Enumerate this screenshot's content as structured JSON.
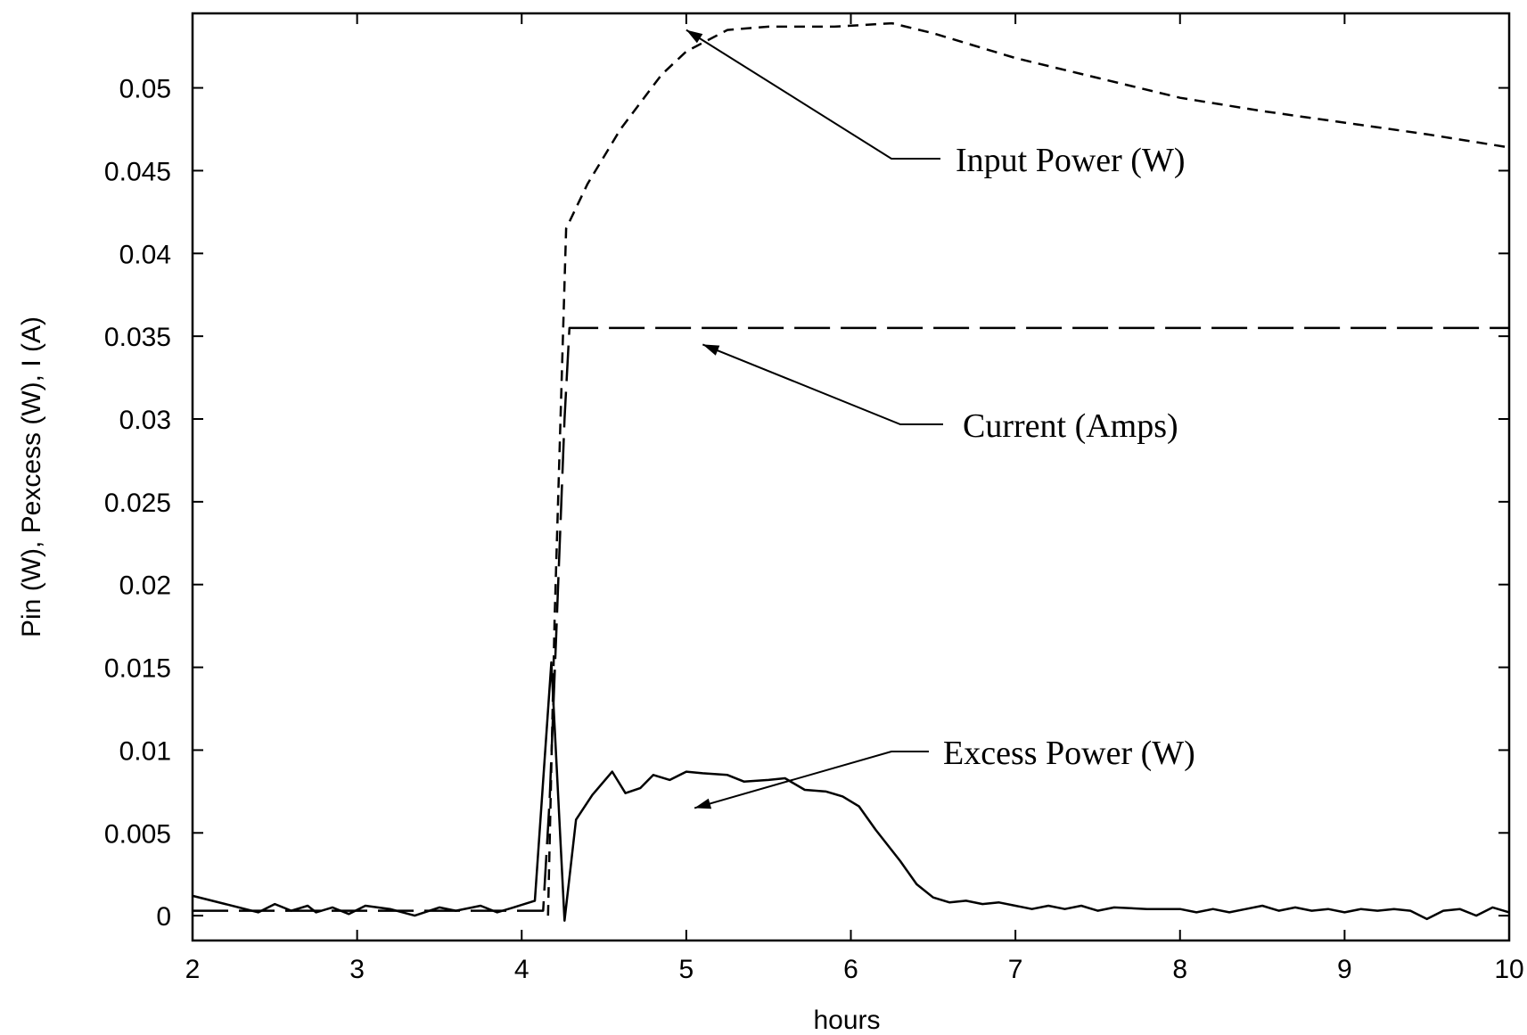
{
  "chart_data": {
    "type": "line",
    "xlabel": "hours",
    "ylabel": "Pin (W), Pexcess (W), I (A)",
    "xlim": [
      2,
      10
    ],
    "ylim": [
      -0.0015,
      0.0545
    ],
    "xticks": [
      2,
      3,
      4,
      5,
      6,
      7,
      8,
      9,
      10
    ],
    "xtick_labels": [
      "2",
      "3",
      "4",
      "5",
      "6",
      "7",
      "8",
      "9",
      "10"
    ],
    "yticks": [
      0,
      0.005,
      0.01,
      0.015,
      0.02,
      0.025,
      0.03,
      0.035,
      0.04,
      0.045,
      0.05
    ],
    "ytick_labels": [
      "0",
      "0.005",
      "0.01",
      "0.015",
      "0.02",
      "0.025",
      "0.03",
      "0.035",
      "0.04",
      "0.045",
      "0.05"
    ],
    "grid": false,
    "legend": "none",
    "series": [
      {
        "key": "input",
        "style": "short-dash",
        "x": [
          4.16,
          4.2,
          4.27,
          4.4,
          4.6,
          4.85,
          5.0,
          5.25,
          5.5,
          5.9,
          6.25,
          6.5,
          7.0,
          7.5,
          8.0,
          8.5,
          9.0,
          9.5,
          10.0
        ],
        "y": [
          0.0,
          0.018,
          0.0415,
          0.0442,
          0.0475,
          0.0508,
          0.0522,
          0.0535,
          0.0537,
          0.0537,
          0.0539,
          0.0533,
          0.0518,
          0.0506,
          0.0494,
          0.0486,
          0.0479,
          0.0472,
          0.0464
        ]
      },
      {
        "key": "current",
        "style": "long-dash",
        "x": [
          2.0,
          4.08,
          4.13,
          4.17,
          4.21,
          4.26,
          4.29,
          5.0,
          6.0,
          7.0,
          8.0,
          9.0,
          10.0
        ],
        "y": [
          0.0003,
          0.0003,
          0.0003,
          0.007,
          0.017,
          0.03,
          0.0355,
          0.0355,
          0.0355,
          0.0355,
          0.0355,
          0.0355,
          0.0355
        ]
      },
      {
        "key": "excess",
        "style": "solid",
        "x": [
          2.0,
          2.2,
          2.4,
          2.5,
          2.6,
          2.7,
          2.75,
          2.85,
          2.95,
          3.05,
          3.2,
          3.35,
          3.5,
          3.6,
          3.75,
          3.85,
          3.95,
          4.08,
          4.18,
          4.26,
          4.33,
          4.43,
          4.55,
          4.63,
          4.72,
          4.8,
          4.9,
          5.0,
          5.1,
          5.25,
          5.35,
          5.5,
          5.6,
          5.72,
          5.85,
          5.95,
          6.05,
          6.15,
          6.3,
          6.4,
          6.5,
          6.6,
          6.7,
          6.8,
          6.9,
          7.0,
          7.1,
          7.2,
          7.3,
          7.4,
          7.5,
          7.6,
          7.8,
          8.0,
          8.1,
          8.2,
          8.3,
          8.4,
          8.5,
          8.6,
          8.7,
          8.8,
          8.9,
          9.0,
          9.1,
          9.2,
          9.3,
          9.4,
          9.5,
          9.6,
          9.7,
          9.8,
          9.9,
          10.0
        ],
        "y": [
          0.0012,
          0.0007,
          0.0002,
          0.0007,
          0.0003,
          0.0006,
          0.0002,
          0.0005,
          0.0001,
          0.0006,
          0.0004,
          0.0,
          0.0005,
          0.0003,
          0.0006,
          0.0002,
          0.0005,
          0.0009,
          0.0153,
          -0.0003,
          0.0058,
          0.0073,
          0.0087,
          0.0074,
          0.0077,
          0.0085,
          0.0082,
          0.0087,
          0.0086,
          0.0085,
          0.0081,
          0.0082,
          0.0083,
          0.0076,
          0.0075,
          0.0072,
          0.0066,
          0.0052,
          0.0033,
          0.0019,
          0.0011,
          0.0008,
          0.0009,
          0.0007,
          0.0008,
          0.0006,
          0.0004,
          0.0006,
          0.0004,
          0.0006,
          0.0003,
          0.0005,
          0.0004,
          0.0004,
          0.0002,
          0.0004,
          0.0002,
          0.0004,
          0.0006,
          0.0003,
          0.0005,
          0.0003,
          0.0004,
          0.0002,
          0.0004,
          0.0003,
          0.0004,
          0.0003,
          -0.0002,
          0.0003,
          0.0004,
          0.0,
          0.0005,
          0.0002
        ]
      }
    ],
    "annotations": [
      {
        "key": "input",
        "text": "Input Power (W)",
        "target": [
          5.0,
          0.0535
        ]
      },
      {
        "key": "current",
        "text": "Current (Amps)",
        "target": [
          5.1,
          0.0345
        ]
      },
      {
        "key": "excess",
        "text": "Excess Power (W)",
        "target": [
          5.05,
          0.0065
        ]
      }
    ]
  }
}
